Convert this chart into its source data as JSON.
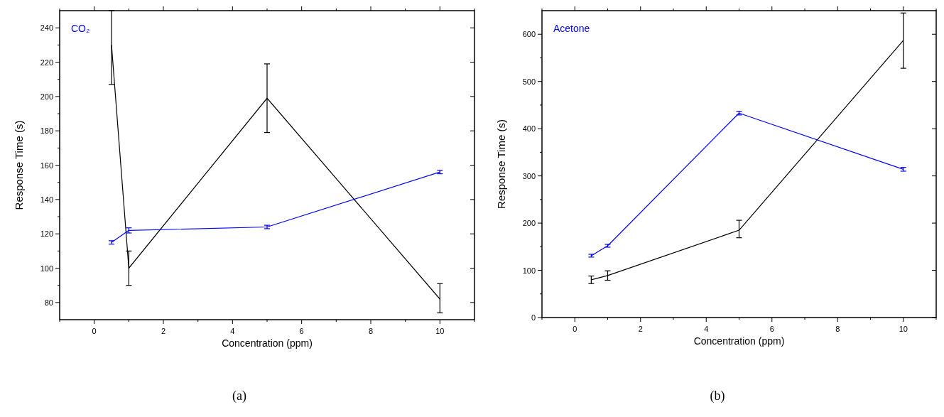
{
  "chart_data": [
    {
      "type": "line",
      "xlabel": "Concentration (ppm)",
      "ylabel": "Response Time (s)",
      "annotations": [
        "CO₂",
        "(a)"
      ],
      "x": [
        0.5,
        1,
        5,
        10
      ],
      "xlim": [
        -1,
        11
      ],
      "xticks": [
        0,
        2,
        4,
        6,
        8,
        10
      ],
      "ylim": [
        70,
        250
      ],
      "yticks": [
        80,
        100,
        120,
        140,
        160,
        180,
        200,
        220,
        240
      ],
      "marker": "none",
      "line_style": "solid",
      "series": [
        {
          "color": "#000000",
          "values": [
            230,
            100,
            199,
            82
          ],
          "errors": [
            [
              207,
              250
            ],
            [
              90,
              110
            ],
            [
              179,
              219
            ],
            [
              74,
              91
            ]
          ]
        },
        {
          "color": "#0000ff",
          "values": [
            115,
            122,
            124,
            156
          ],
          "errors": [
            1,
            1.5,
            1,
            1
          ]
        }
      ]
    },
    {
      "type": "line",
      "xlabel": "Concentration (ppm)",
      "ylabel": "Response Time (s)",
      "annotations": [
        "Acetone",
        "(b)"
      ],
      "x": [
        0.5,
        1,
        5,
        10
      ],
      "xlim": [
        -1,
        11
      ],
      "xticks": [
        0,
        2,
        4,
        6,
        8,
        10
      ],
      "ylim": [
        0,
        650
      ],
      "yticks": [
        0,
        100,
        200,
        300,
        400,
        500,
        600
      ],
      "marker": "none",
      "line_style": "solid",
      "series": [
        {
          "color": "#000000",
          "values": [
            80,
            89,
            185,
            587
          ],
          "errors": [
            8,
            10,
            [
              169,
              206
            ],
            [
              528,
              645
            ]
          ]
        },
        {
          "color": "#0000ff",
          "values": [
            131,
            152,
            433,
            314
          ],
          "errors": [
            3,
            3,
            4,
            4
          ]
        }
      ]
    }
  ]
}
